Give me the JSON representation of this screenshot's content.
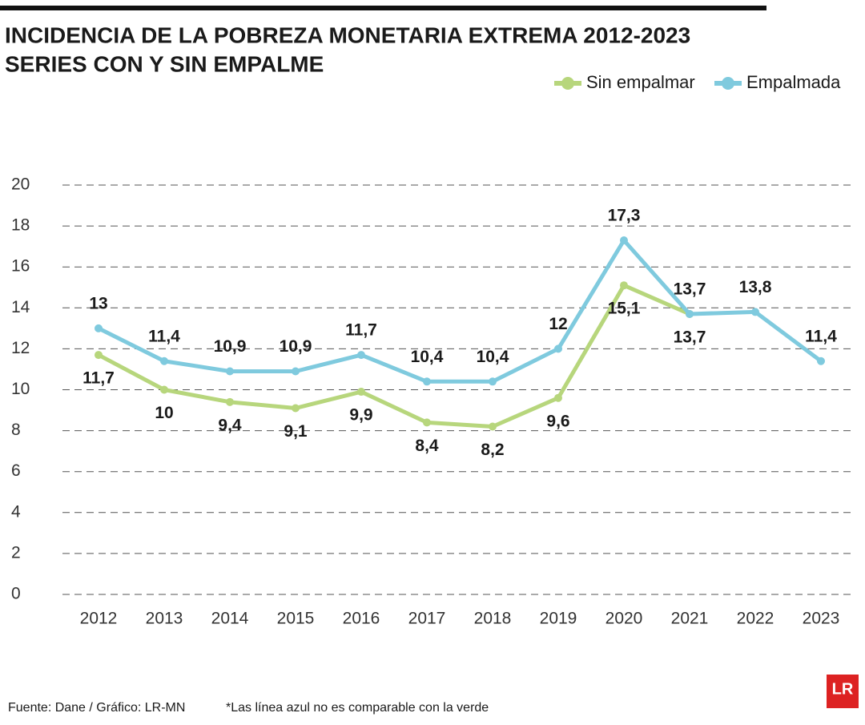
{
  "chart_data": {
    "type": "line",
    "title": "INCIDENCIA DE LA POBREZA MONETARIA EXTREMA 2012-2023",
    "subtitle": "SERIES CON Y SIN EMPALME",
    "source": "Fuente: Dane / Gráfico: LR-MN",
    "note": "*Las línea azul no es comparable con la verde",
    "categories": [
      "2012",
      "2013",
      "2014",
      "2015",
      "2016",
      "2017",
      "2018",
      "2019",
      "2020",
      "2021",
      "2022",
      "2023"
    ],
    "series": [
      {
        "name": "Sin empalmar",
        "color": "#b7d67c",
        "values": [
          11.7,
          10,
          9.4,
          9.1,
          9.9,
          8.4,
          8.2,
          9.6,
          15.1,
          13.7,
          null,
          null
        ],
        "value_labels": [
          "11,7",
          "10",
          "9,4",
          "9,1",
          "9,9",
          "8,4",
          "8,2",
          "9,6",
          "15,1",
          "13,7",
          null,
          null
        ]
      },
      {
        "name": "Empalmada",
        "color": "#7fcade",
        "values": [
          13,
          11.4,
          10.9,
          10.9,
          11.7,
          10.4,
          10.4,
          12,
          17.3,
          13.7,
          13.8,
          11.4
        ],
        "value_labels": [
          "13",
          "11,4",
          "10,9",
          "10,9",
          "11,7",
          "10,4",
          "10,4",
          "12",
          "17,3",
          "13,7",
          "13,8",
          "11,4"
        ]
      }
    ],
    "ylim": [
      0,
      20
    ],
    "yticks": [
      0,
      2,
      4,
      6,
      8,
      10,
      12,
      14,
      16,
      18,
      20
    ],
    "grid": true
  },
  "logo": "LR"
}
